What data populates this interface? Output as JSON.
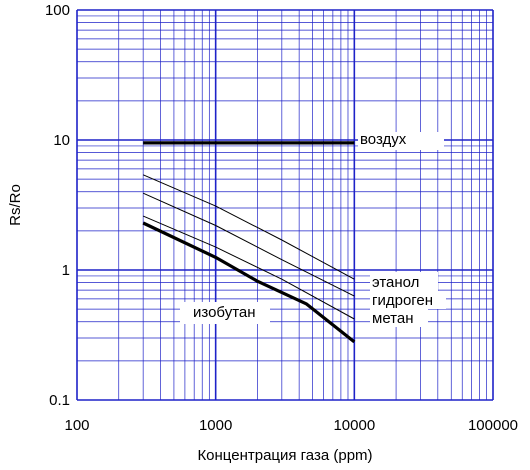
{
  "chart_data": {
    "type": "line",
    "xlabel": "Концентрация газа (ppm)",
    "ylabel": "Rs/Ro",
    "xscale": "log",
    "yscale": "log",
    "xlim": [
      100,
      100000
    ],
    "ylim": [
      0.1,
      100
    ],
    "grid": true,
    "grid_color": "#1e22c8",
    "x_ticks": [
      "100",
      "1000",
      "10000",
      "100000"
    ],
    "y_ticks": [
      "0.1",
      "1",
      "10",
      "100"
    ],
    "series": [
      {
        "name": "воздух",
        "x": [
          300,
          10000
        ],
        "y": [
          9.5,
          9.5
        ]
      },
      {
        "name": "этанол",
        "x": [
          300,
          1000,
          3000,
          10000
        ],
        "y": [
          5.4,
          3.1,
          1.7,
          0.85
        ]
      },
      {
        "name": "гидроген",
        "x": [
          300,
          1000,
          3000,
          10000
        ],
        "y": [
          3.9,
          2.2,
          1.2,
          0.63
        ]
      },
      {
        "name": "метан",
        "x": [
          300,
          1000,
          3000,
          10000
        ],
        "y": [
          2.6,
          1.5,
          0.85,
          0.42
        ]
      },
      {
        "name": "изобутан",
        "x": [
          300,
          1000,
          2000,
          4500,
          10000
        ],
        "y": [
          2.3,
          1.25,
          0.82,
          0.55,
          0.28
        ]
      }
    ]
  }
}
